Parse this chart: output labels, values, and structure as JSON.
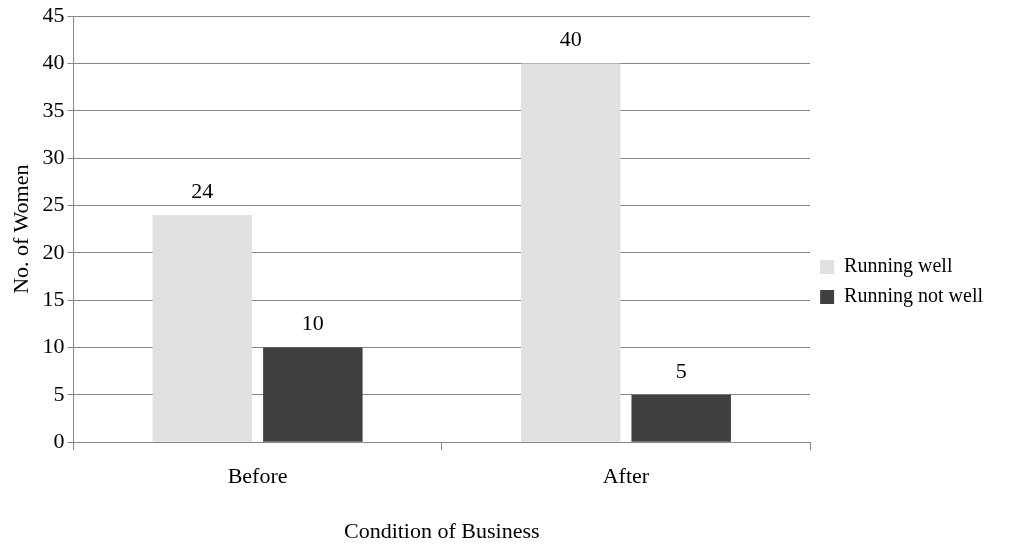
{
  "chart_data": {
    "type": "bar",
    "xlabel": "Condition of Business",
    "ylabel": "No. of Women",
    "categories": [
      "Before",
      "After"
    ],
    "series": [
      {
        "name": "Running well",
        "color": "#e0e0e0",
        "values": [
          24,
          40
        ]
      },
      {
        "name": "Running not well",
        "color": "#404040",
        "values": [
          10,
          5
        ]
      }
    ],
    "ylim": [
      0,
      45
    ],
    "yticks": [
      0,
      5,
      10,
      15,
      20,
      25,
      30,
      35,
      40,
      45
    ],
    "grid": "y",
    "legend": "right",
    "data_labels": true
  }
}
